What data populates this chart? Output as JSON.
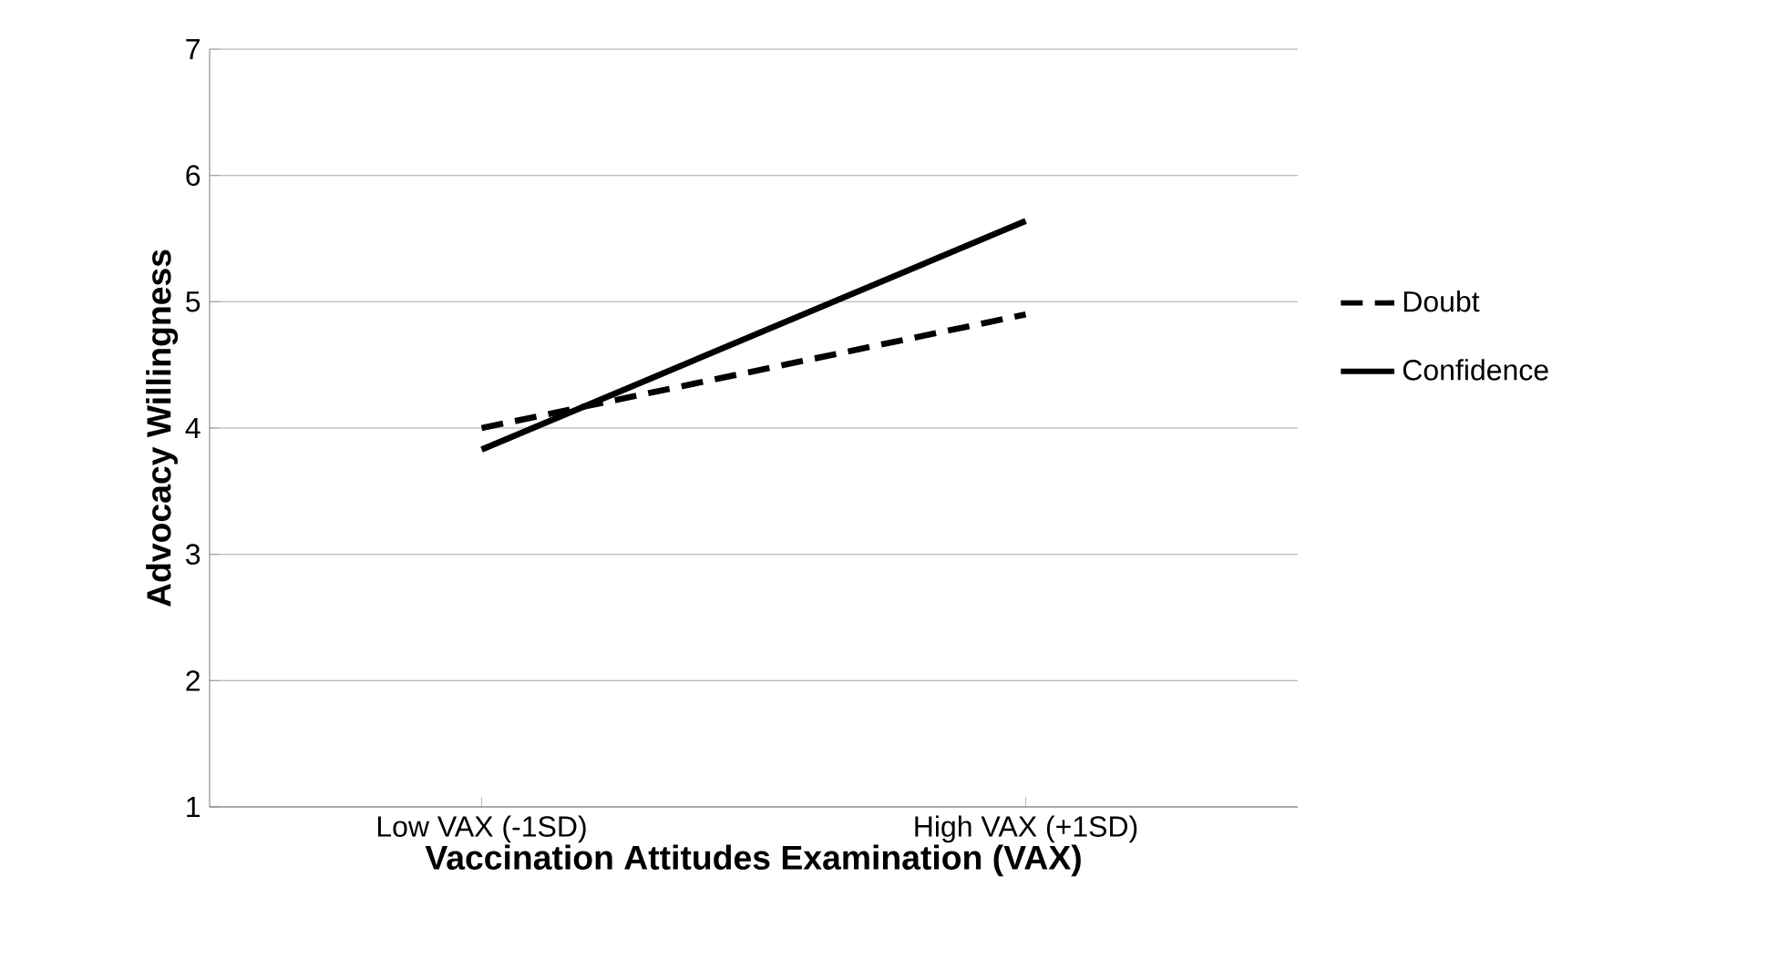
{
  "chart_data": {
    "type": "line",
    "xlabel": "Vaccination Attitudes Examination (VAX)",
    "ylabel": "Advocacy Willingness",
    "categories": [
      "Low VAX (-1SD)",
      "High VAX (+1SD)"
    ],
    "series": [
      {
        "name": "Doubt",
        "color": "#000000",
        "values": [
          4.0,
          4.9
        ],
        "line_style": "dashed"
      },
      {
        "name": "Confidence",
        "color": "#000000",
        "values": [
          3.83,
          5.64
        ],
        "line_style": "solid"
      }
    ],
    "ylim": [
      1,
      7
    ],
    "yticks": [
      1,
      2,
      3,
      4,
      5,
      6,
      7
    ],
    "grid": "y",
    "legend": "right",
    "marker": "none"
  }
}
